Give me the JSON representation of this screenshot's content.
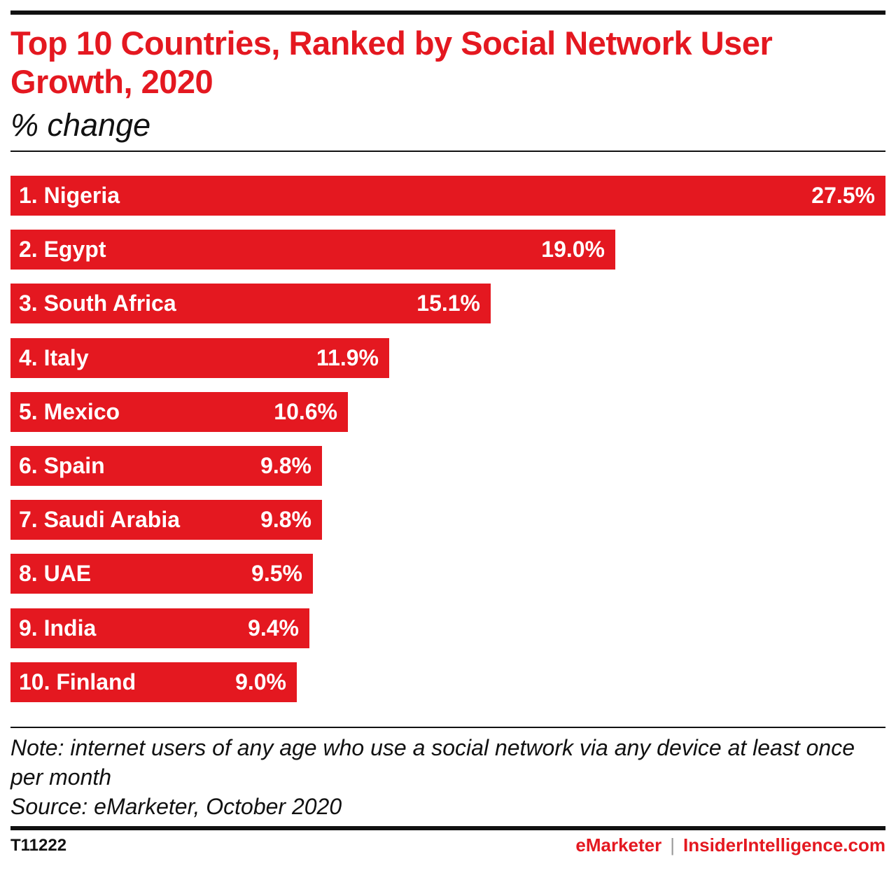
{
  "header": {
    "title": "Top 10 Countries, Ranked by Social Network User Growth, 2020",
    "subtitle": "% change"
  },
  "chart_data": {
    "type": "bar",
    "orientation": "horizontal",
    "title": "Top 10 Countries, Ranked by Social Network User Growth, 2020",
    "subtitle": "% change",
    "categories": [
      "1. Nigeria",
      "2. Egypt",
      "3. South Africa",
      "4. Italy",
      "5. Mexico",
      "6. Spain",
      "7. Saudi Arabia",
      "8. UAE",
      "9. India",
      "10. Finland"
    ],
    "values": [
      27.5,
      19.0,
      15.1,
      11.9,
      10.6,
      9.8,
      9.8,
      9.5,
      9.4,
      9.0
    ],
    "value_labels": [
      "27.5%",
      "19.0%",
      "15.1%",
      "11.9%",
      "10.6%",
      "9.8%",
      "9.8%",
      "9.5%",
      "9.4%",
      "9.0%"
    ],
    "xlim": [
      0,
      27.5
    ],
    "grid": false,
    "bar_color": "#e41820"
  },
  "footer": {
    "note": "Note: internet users of any age who use a social network via any device at least once per month",
    "source": "Source: eMarketer, October 2020",
    "chart_id": "T11222",
    "brand_primary": "eMarketer",
    "brand_separator": "|",
    "brand_secondary": "InsiderIntelligence.com"
  }
}
